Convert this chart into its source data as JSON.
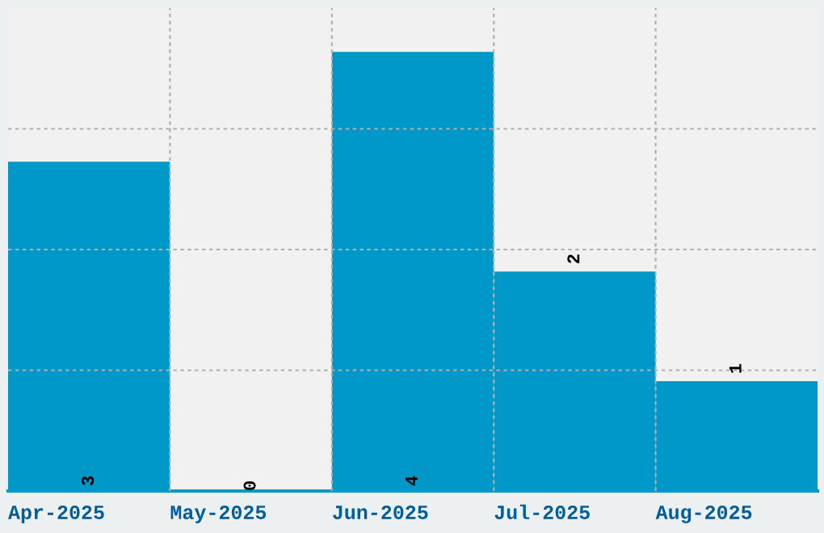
{
  "chart_data": {
    "type": "bar",
    "categories": [
      "Apr-2025",
      "May-2025",
      "Jun-2025",
      "Jul-2025",
      "Aug-2025"
    ],
    "values": [
      3,
      0,
      4,
      2,
      1
    ],
    "color": "#0098c9",
    "ylim": [
      0,
      4.4
    ],
    "yticks": [
      {
        "value": 1.1,
        "label": null
      },
      {
        "value": 2.2,
        "label": null
      },
      {
        "value": 3.3,
        "label": null
      }
    ],
    "tick_labels": "x",
    "data_labels": true,
    "grid": true
  }
}
